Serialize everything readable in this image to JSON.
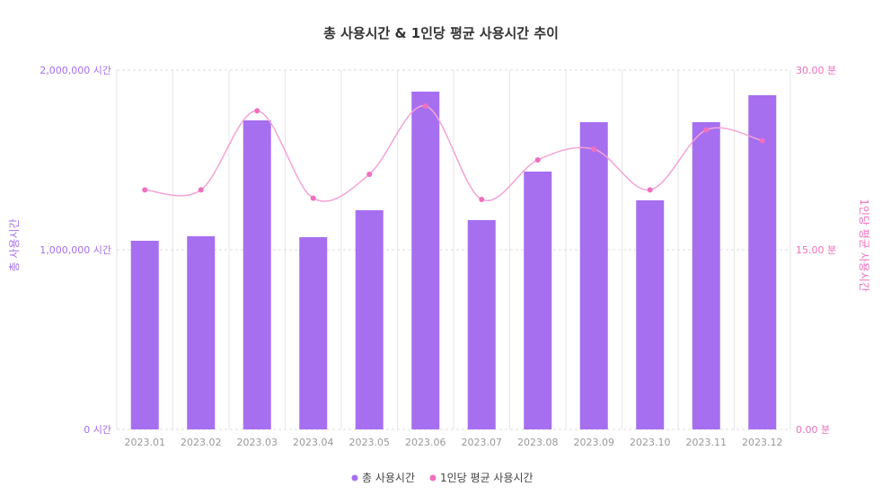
{
  "chart_data": {
    "type": "bar",
    "title": "총 사용시간 & 1인당 평균 사용시간 추이",
    "categories": [
      "2023.01",
      "2023.02",
      "2023.03",
      "2023.04",
      "2023.05",
      "2023.06",
      "2023.07",
      "2023.08",
      "2023.09",
      "2023.10",
      "2023.11",
      "2023.12"
    ],
    "series": [
      {
        "name": "총 사용시간",
        "type": "bar",
        "axis": "left",
        "color": "#a66fef",
        "values": [
          1050000,
          1075000,
          1720000,
          1070000,
          1220000,
          1880000,
          1165000,
          1435000,
          1710000,
          1275000,
          1710000,
          1860000
        ]
      },
      {
        "name": "1인당 평균 사용시간",
        "type": "line",
        "axis": "right",
        "color": "#f06fbf",
        "values": [
          20.0,
          20.0,
          26.6,
          19.3,
          21.3,
          27.0,
          19.2,
          22.5,
          23.4,
          20.0,
          25.0,
          24.1
        ]
      }
    ],
    "y_left": {
      "label": "총 사용시간",
      "ylim": [
        0,
        2000000
      ],
      "ticks": [
        "0 시간",
        "1,000,000 시간",
        "2,000,000 시간"
      ]
    },
    "y_right": {
      "label": "1인당 평균 사용시간",
      "ylim": [
        0,
        30
      ],
      "ticks": [
        "0.00 분",
        "15.00 분",
        "30.00 분"
      ]
    },
    "legend": {
      "position": "bottom-center",
      "entries": [
        "총 사용시간",
        "1인당 평균 사용시간"
      ]
    },
    "grid": true
  }
}
